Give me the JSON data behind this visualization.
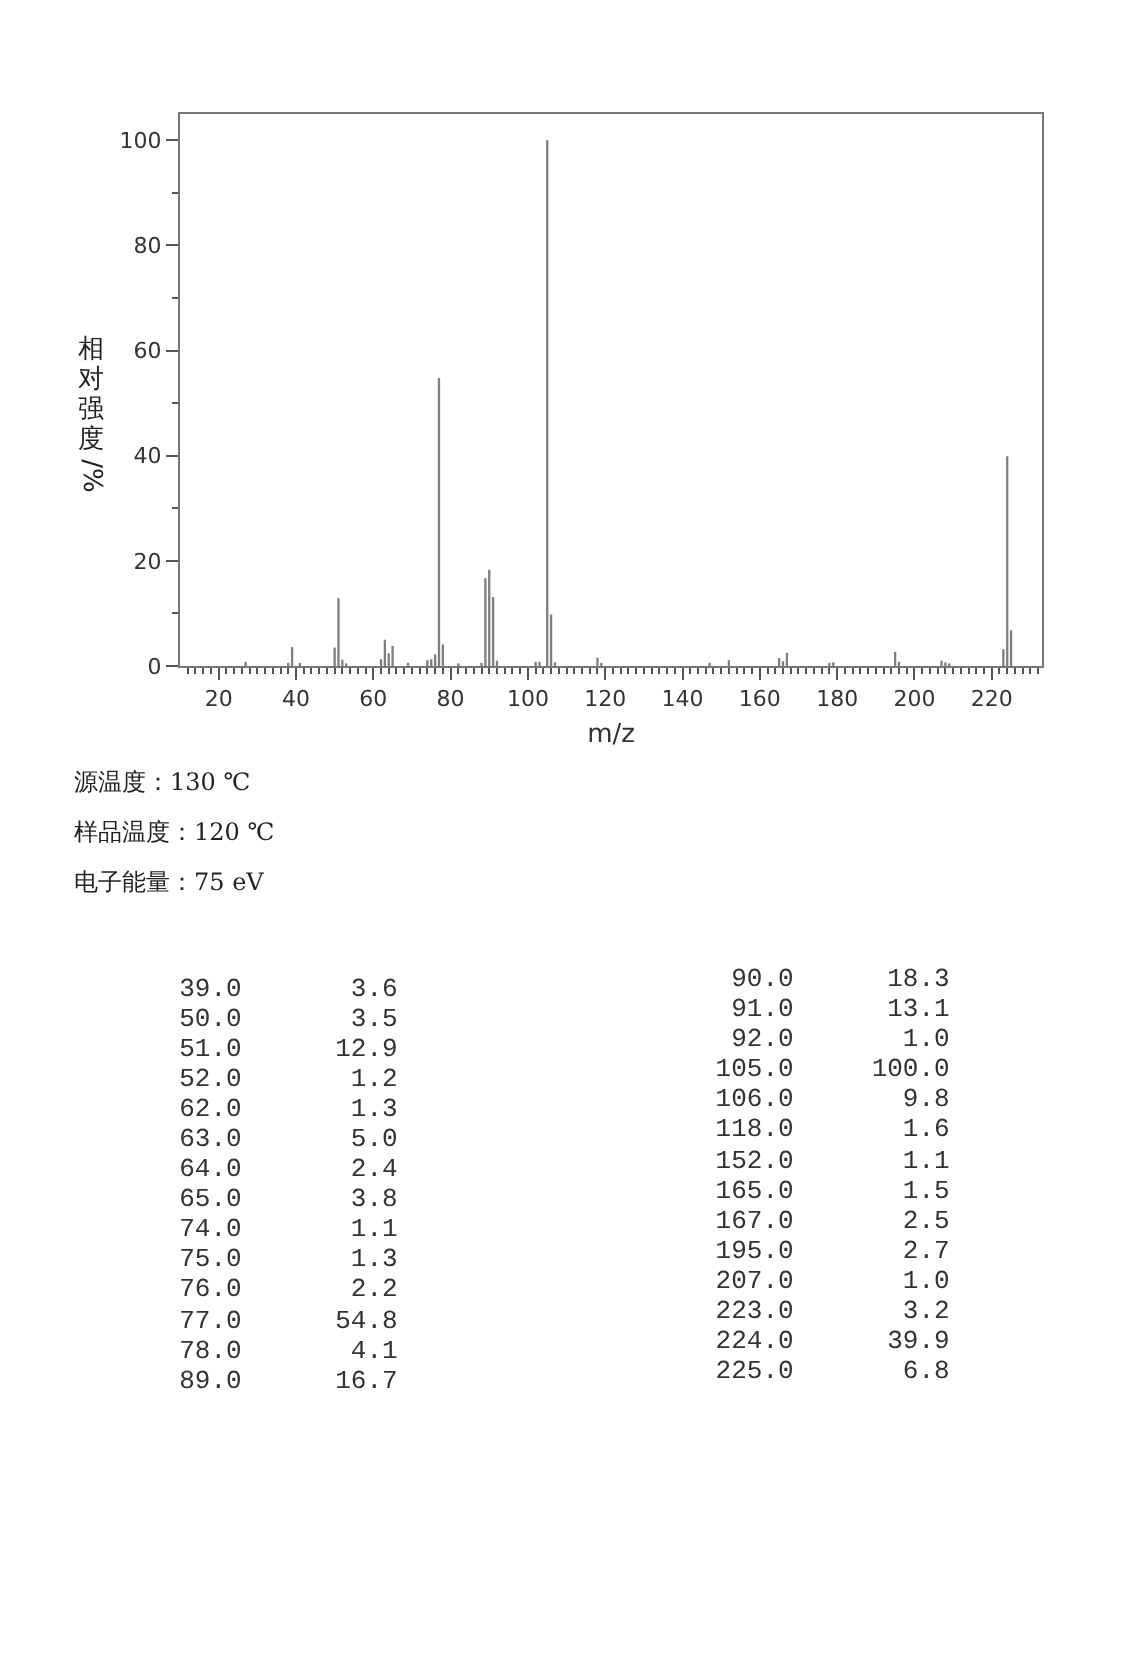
{
  "chart_data": [
    {
      "type": "bar",
      "xlabel": "m/z",
      "ylabel": "相对强度/%",
      "annotations": [
        "源温度：130 ℃",
        "样品温度：120 ℃",
        "电子能量：75 eV"
      ],
      "x": [
        27,
        38,
        39,
        41,
        50,
        51,
        52,
        53,
        62,
        63,
        64,
        65,
        69,
        74,
        75,
        76,
        77,
        78,
        82,
        88,
        89,
        90,
        91,
        92,
        102,
        103,
        105,
        106,
        107,
        118,
        119,
        147,
        152,
        165,
        166,
        167,
        178,
        179,
        195,
        196,
        207,
        208,
        209,
        223,
        224,
        225
      ],
      "values": [
        0.8,
        0.6,
        3.6,
        0.6,
        3.5,
        12.9,
        1.2,
        0.5,
        1.3,
        5.0,
        2.4,
        3.8,
        0.6,
        1.1,
        1.3,
        2.2,
        54.8,
        4.1,
        0.5,
        0.6,
        16.7,
        18.3,
        13.1,
        1.0,
        0.8,
        0.8,
        100.0,
        9.8,
        0.7,
        1.6,
        0.6,
        0.6,
        1.1,
        1.5,
        0.9,
        2.5,
        0.6,
        0.7,
        2.7,
        0.8,
        1.0,
        0.7,
        0.5,
        3.2,
        39.9,
        6.8
      ],
      "color": "#7f7f7f",
      "xlim": [
        10,
        233
      ],
      "xticks": [
        {
          "value": 12,
          "label": null
        },
        {
          "value": 14,
          "label": null
        },
        {
          "value": 16,
          "label": null
        },
        {
          "value": 18,
          "label": null
        },
        20,
        {
          "value": 22,
          "label": null
        },
        {
          "value": 24,
          "label": null
        },
        {
          "value": 26,
          "label": null
        },
        {
          "value": 28,
          "label": null
        },
        {
          "value": 30,
          "label": null
        },
        {
          "value": 32,
          "label": null
        },
        {
          "value": 34,
          "label": null
        },
        {
          "value": 36,
          "label": null
        },
        {
          "value": 38,
          "label": null
        },
        40,
        {
          "value": 42,
          "label": null
        },
        {
          "value": 44,
          "label": null
        },
        {
          "value": 46,
          "label": null
        },
        {
          "value": 48,
          "label": null
        },
        {
          "value": 50,
          "label": null
        },
        {
          "value": 52,
          "label": null
        },
        {
          "value": 54,
          "label": null
        },
        {
          "value": 56,
          "label": null
        },
        {
          "value": 58,
          "label": null
        },
        60,
        {
          "value": 62,
          "label": null
        },
        {
          "value": 64,
          "label": null
        },
        {
          "value": 66,
          "label": null
        },
        {
          "value": 68,
          "label": null
        },
        {
          "value": 70,
          "label": null
        },
        {
          "value": 72,
          "label": null
        },
        {
          "value": 74,
          "label": null
        },
        {
          "value": 76,
          "label": null
        },
        {
          "value": 78,
          "label": null
        },
        80,
        {
          "value": 82,
          "label": null
        },
        {
          "value": 84,
          "label": null
        },
        {
          "value": 86,
          "label": null
        },
        {
          "value": 88,
          "label": null
        },
        {
          "value": 90,
          "label": null
        },
        {
          "value": 92,
          "label": null
        },
        {
          "value": 94,
          "label": null
        },
        {
          "value": 96,
          "label": null
        },
        {
          "value": 98,
          "label": null
        },
        100,
        {
          "value": 102,
          "label": null
        },
        {
          "value": 104,
          "label": null
        },
        {
          "value": 106,
          "label": null
        },
        {
          "value": 108,
          "label": null
        },
        {
          "value": 110,
          "label": null
        },
        {
          "value": 112,
          "label": null
        },
        {
          "value": 114,
          "label": null
        },
        {
          "value": 116,
          "label": null
        },
        {
          "value": 118,
          "label": null
        },
        120,
        {
          "value": 122,
          "label": null
        },
        {
          "value": 124,
          "label": null
        },
        {
          "value": 126,
          "label": null
        },
        {
          "value": 128,
          "label": null
        },
        {
          "value": 130,
          "label": null
        },
        {
          "value": 132,
          "label": null
        },
        {
          "value": 134,
          "label": null
        },
        {
          "value": 136,
          "label": null
        },
        {
          "value": 138,
          "label": null
        },
        140,
        {
          "value": 142,
          "label": null
        },
        {
          "value": 144,
          "label": null
        },
        {
          "value": 146,
          "label": null
        },
        {
          "value": 148,
          "label": null
        },
        {
          "value": 150,
          "label": null
        },
        {
          "value": 152,
          "label": null
        },
        {
          "value": 154,
          "label": null
        },
        {
          "value": 156,
          "label": null
        },
        {
          "value": 158,
          "label": null
        },
        160,
        {
          "value": 162,
          "label": null
        },
        {
          "value": 164,
          "label": null
        },
        {
          "value": 166,
          "label": null
        },
        {
          "value": 168,
          "label": null
        },
        {
          "value": 170,
          "label": null
        },
        {
          "value": 172,
          "label": null
        },
        {
          "value": 174,
          "label": null
        },
        {
          "value": 176,
          "label": null
        },
        {
          "value": 178,
          "label": null
        },
        180,
        {
          "value": 182,
          "label": null
        },
        {
          "value": 184,
          "label": null
        },
        {
          "value": 186,
          "label": null
        },
        {
          "value": 188,
          "label": null
        },
        {
          "value": 190,
          "label": null
        },
        {
          "value": 192,
          "label": null
        },
        {
          "value": 194,
          "label": null
        },
        {
          "value": 196,
          "label": null
        },
        {
          "value": 198,
          "label": null
        },
        200,
        {
          "value": 202,
          "label": null
        },
        {
          "value": 204,
          "label": null
        },
        {
          "value": 206,
          "label": null
        },
        {
          "value": 208,
          "label": null
        },
        {
          "value": 210,
          "label": null
        },
        {
          "value": 212,
          "label": null
        },
        {
          "value": 214,
          "label": null
        },
        {
          "value": 216,
          "label": null
        },
        {
          "value": 218,
          "label": null
        },
        220,
        {
          "value": 222,
          "label": null
        },
        {
          "value": 224,
          "label": null
        },
        {
          "value": 226,
          "label": null
        },
        {
          "value": 228,
          "label": null
        },
        {
          "value": 230,
          "label": null
        },
        {
          "value": 232,
          "label": null
        }
      ],
      "ylim": [
        0,
        105
      ],
      "yticks": [
        0,
        {
          "value": 10,
          "label": null
        },
        20,
        {
          "value": 30,
          "label": null
        },
        40,
        {
          "value": 50,
          "label": null
        },
        60,
        {
          "value": 70,
          "label": null
        },
        80,
        {
          "value": 90,
          "label": null
        },
        100
      ]
    },
    {
      "type": "other",
      "annotations": [
        "39.0 3.6",
        "50.0 3.5",
        "51.0 12.9",
        "52.0 1.2",
        "62.0 1.3",
        "63.0 5.0",
        "64.0 2.4",
        "65.0 3.8",
        "74.0 1.1",
        "75.0 1.3",
        "76.0 2.2",
        "77.0 54.8",
        "78.0 4.1",
        "89.0 16.7",
        "90.0 18.3",
        "91.0 13.1",
        "92.0 1.0",
        "105.0 100.0",
        "106.0 9.8",
        "118.0 1.6",
        "152.0 1.1",
        "165.0 1.5",
        "167.0 2.5",
        "195.0 2.7",
        "207.0 1.0",
        "223.0 3.2",
        "224.0 39.9",
        "225.0 6.8"
      ]
    }
  ]
}
